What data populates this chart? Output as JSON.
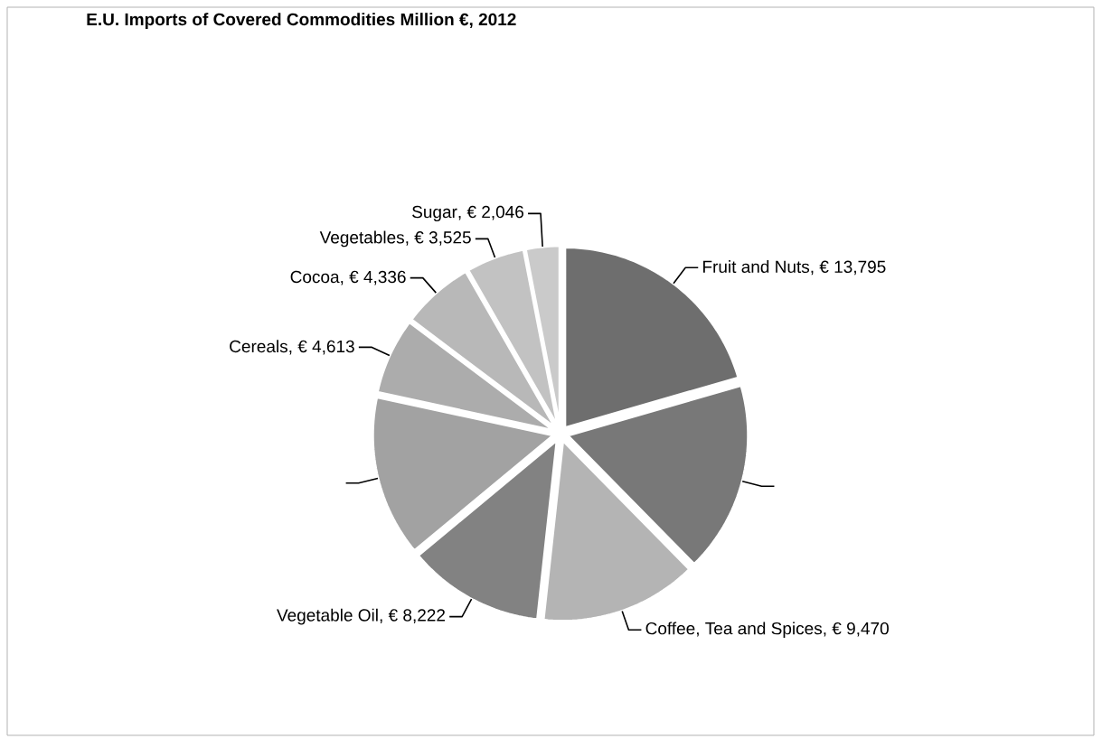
{
  "chart_data": {
    "type": "pie",
    "title": "E.U. Imports of Covered Commodities Million €, 2012",
    "categories": [
      "Fruit and Nuts",
      null,
      "Coffee, Tea and Spices",
      "Vegetable Oil",
      null,
      "Cereals",
      "Cocoa",
      "Vegetables",
      "Sugar"
    ],
    "values": [
      13795,
      11500,
      9470,
      8222,
      9700,
      4613,
      4336,
      3525,
      2046
    ],
    "value_labels": [
      ", € 13,795",
      null,
      ", € 9,470",
      ", € 8,222",
      null,
      ", € 4,613",
      ", € 4,336",
      ", € 3,525",
      ", € 2,046"
    ],
    "colors": [
      "#6e6e6e",
      "#787878",
      "#b4b4b4",
      "#828282",
      "#a2a2a2",
      "#acacac",
      "#b8b8b8",
      "#c2c2c2",
      "#cacaca"
    ]
  }
}
